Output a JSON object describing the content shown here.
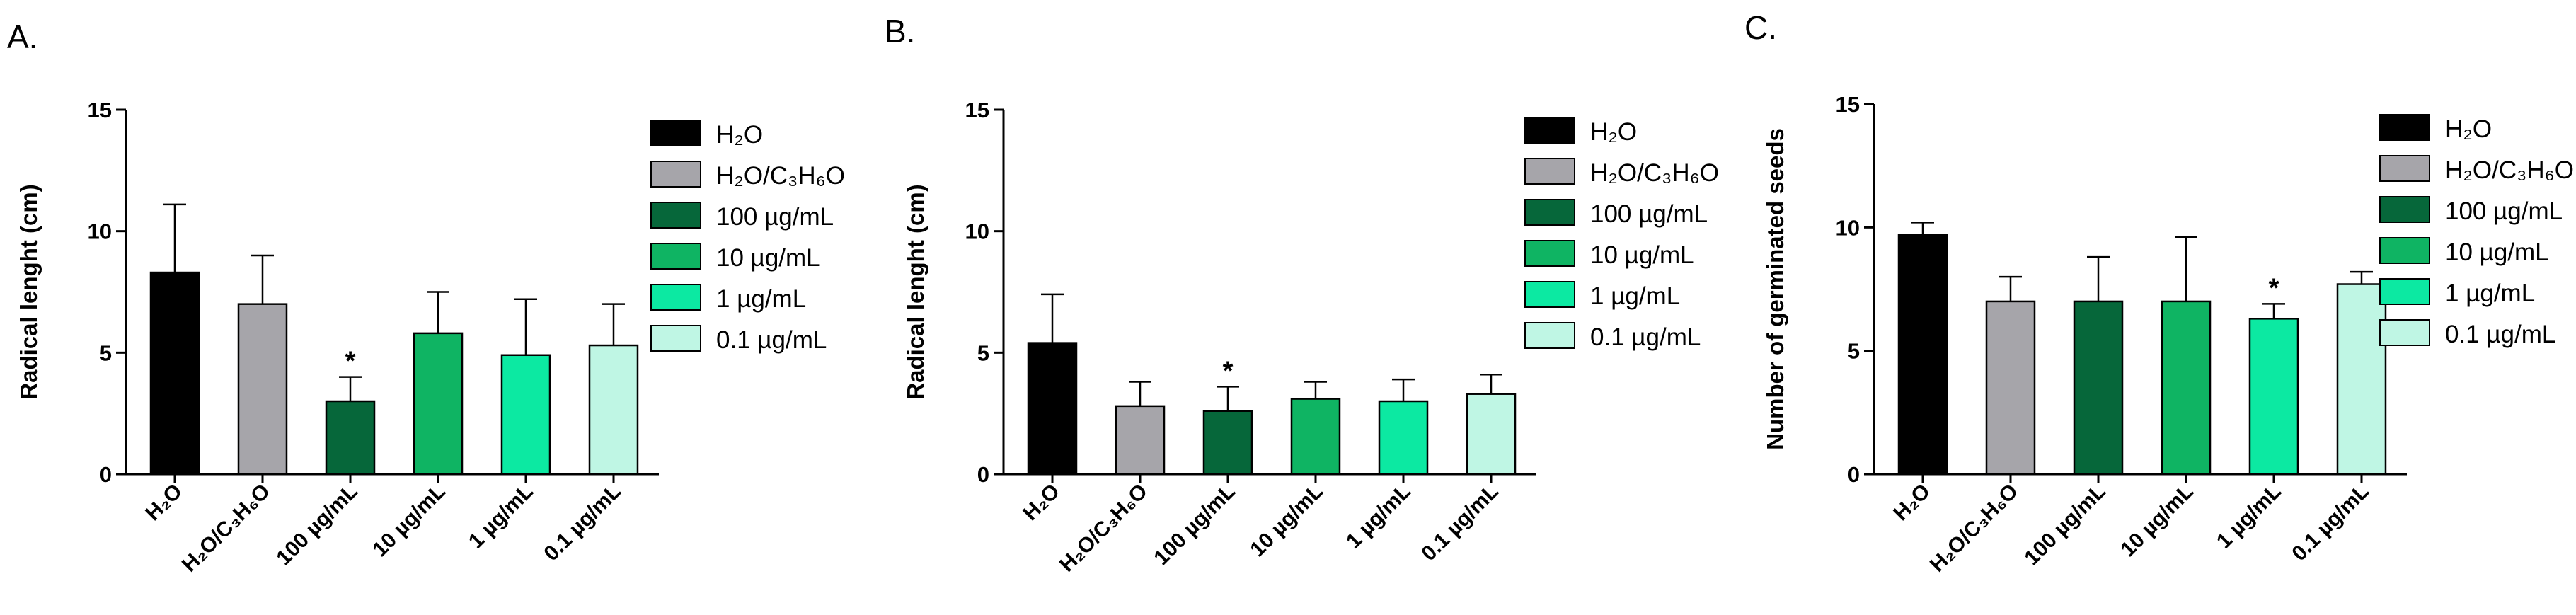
{
  "chart_data": [
    {
      "panel": "A.",
      "type": "bar",
      "ylabel": "Radical lenght (cm)",
      "ylim": [
        0,
        15
      ],
      "yticks": [
        "0",
        "5",
        "10",
        "15"
      ],
      "categories": [
        "H₂O",
        "H₂O/C₃H₆O",
        "100 µg/mL",
        "10 µg/mL",
        "1 µg/mL",
        "0.1 µg/mL"
      ],
      "values": [
        8.3,
        7.0,
        3.0,
        5.8,
        4.9,
        5.3
      ],
      "errors": [
        2.8,
        2.0,
        1.0,
        1.7,
        2.3,
        1.7
      ],
      "significant": [
        false,
        false,
        true,
        false,
        false,
        false
      ],
      "significance_marker": "*",
      "grid": false,
      "legend_position": "right"
    },
    {
      "panel": "B.",
      "type": "bar",
      "ylabel": "Radical lenght (cm)",
      "ylim": [
        0,
        15
      ],
      "yticks": [
        "0",
        "5",
        "10",
        "15"
      ],
      "categories": [
        "H₂O",
        "H₂O/C₃H₆O",
        "100 µg/mL",
        "10 µg/mL",
        "1 µg/mL",
        "0.1 µg/mL"
      ],
      "values": [
        5.4,
        2.8,
        2.6,
        3.1,
        3.0,
        3.3
      ],
      "errors": [
        2.0,
        1.0,
        1.0,
        0.7,
        0.9,
        0.8
      ],
      "significant": [
        false,
        false,
        true,
        false,
        false,
        false
      ],
      "significance_marker": "*",
      "grid": false,
      "legend_position": "right"
    },
    {
      "panel": "C.",
      "type": "bar",
      "ylabel": "Number of germinated seeds",
      "ylim": [
        0,
        15
      ],
      "yticks": [
        "0",
        "5",
        "10",
        "15"
      ],
      "categories": [
        "H₂O",
        "H₂O/C₃H₆O",
        "100 µg/mL",
        "10 µg/mL",
        "1 µg/mL",
        "0.1 µg/mL"
      ],
      "values": [
        9.7,
        7.0,
        7.0,
        7.0,
        6.3,
        7.7
      ],
      "errors": [
        0.5,
        1.0,
        1.8,
        2.6,
        0.6,
        0.5
      ],
      "significant": [
        false,
        false,
        false,
        false,
        true,
        false
      ],
      "significance_marker": "*",
      "grid": false,
      "legend_position": "right"
    }
  ],
  "legend": {
    "entries": [
      "H₂O",
      "H₂O/C₃H₆O",
      "100 µg/mL",
      "10 µg/mL",
      "1 µg/mL",
      "0.1 µg/mL"
    ],
    "colors": [
      "#000000",
      "#a6a5aa",
      "#06673a",
      "#0fb463",
      "#0ce9a2",
      "#bff6e4"
    ]
  }
}
